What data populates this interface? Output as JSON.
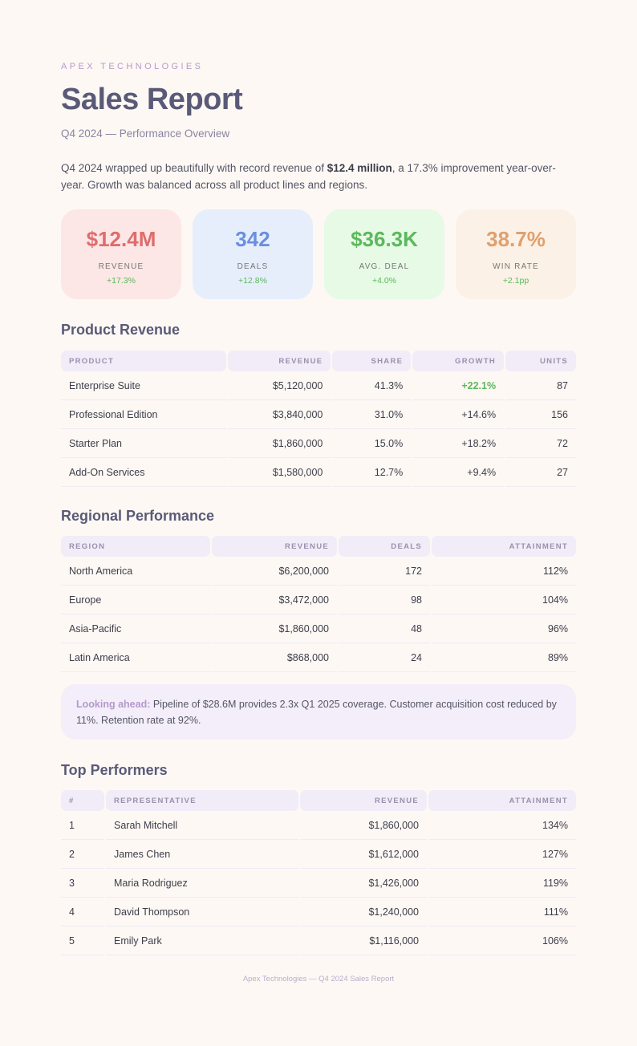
{
  "brand": "APEX TECHNOLOGIES",
  "title": "Sales Report",
  "subtitle": "Q4 2024 — Performance Overview",
  "intro": {
    "pre": "Q4 2024 wrapped up beautifully with record revenue of ",
    "bold": "$12.4 million",
    "post": ", a 17.3% improvement year-over-year. Growth was balanced across all product lines and regions."
  },
  "kpis": [
    {
      "value": "$12.4M",
      "label": "REVENUE",
      "change": "+17.3%",
      "bg": "#fce6e6",
      "color": "#e06c6c"
    },
    {
      "value": "342",
      "label": "DEALS",
      "change": "+12.8%",
      "bg": "#e6eefc",
      "color": "#6b8fdf"
    },
    {
      "value": "$36.3K",
      "label": "AVG. DEAL",
      "change": "+4.0%",
      "bg": "#e6fae6",
      "color": "#5cb85c"
    },
    {
      "value": "38.7%",
      "label": "WIN RATE",
      "change": "+2.1pp",
      "bg": "#fbf1e6",
      "color": "#e0a06c"
    }
  ],
  "product": {
    "heading": "Product Revenue",
    "columns": [
      "PRODUCT",
      "REVENUE",
      "SHARE",
      "GROWTH",
      "UNITS"
    ],
    "rows": [
      [
        "Enterprise Suite",
        "$5,120,000",
        "41.3%",
        "+22.1%",
        "87"
      ],
      [
        "Professional Edition",
        "$3,840,000",
        "31.0%",
        "+14.6%",
        "156"
      ],
      [
        "Starter Plan",
        "$1,860,000",
        "15.0%",
        "+18.2%",
        "72"
      ],
      [
        "Add-On Services",
        "$1,580,000",
        "12.7%",
        "+9.4%",
        "27"
      ]
    ]
  },
  "regional": {
    "heading": "Regional Performance",
    "columns": [
      "REGION",
      "REVENUE",
      "DEALS",
      "ATTAINMENT"
    ],
    "rows": [
      [
        "North America",
        "$6,200,000",
        "172",
        "112%"
      ],
      [
        "Europe",
        "$3,472,000",
        "98",
        "104%"
      ],
      [
        "Asia-Pacific",
        "$1,860,000",
        "48",
        "96%"
      ],
      [
        "Latin America",
        "$868,000",
        "24",
        "89%"
      ]
    ]
  },
  "callout": {
    "label": "Looking ahead:",
    "text": " Pipeline of $28.6M provides 2.3x Q1 2025 coverage. Customer acquisition cost reduced by 11%. Retention rate at 92%."
  },
  "performers": {
    "heading": "Top Performers",
    "columns": [
      "#",
      "REPRESENTATIVE",
      "REVENUE",
      "ATTAINMENT"
    ],
    "rows": [
      [
        "1",
        "Sarah Mitchell",
        "$1,860,000",
        "134%"
      ],
      [
        "2",
        "James Chen",
        "$1,612,000",
        "127%"
      ],
      [
        "3",
        "Maria Rodriguez",
        "$1,426,000",
        "119%"
      ],
      [
        "4",
        "David Thompson",
        "$1,240,000",
        "111%"
      ],
      [
        "5",
        "Emily Park",
        "$1,116,000",
        "106%"
      ]
    ]
  },
  "footer": "Apex Technologies — Q4 2024 Sales Report",
  "colors": {
    "highlight_green": "#5cb85c"
  }
}
